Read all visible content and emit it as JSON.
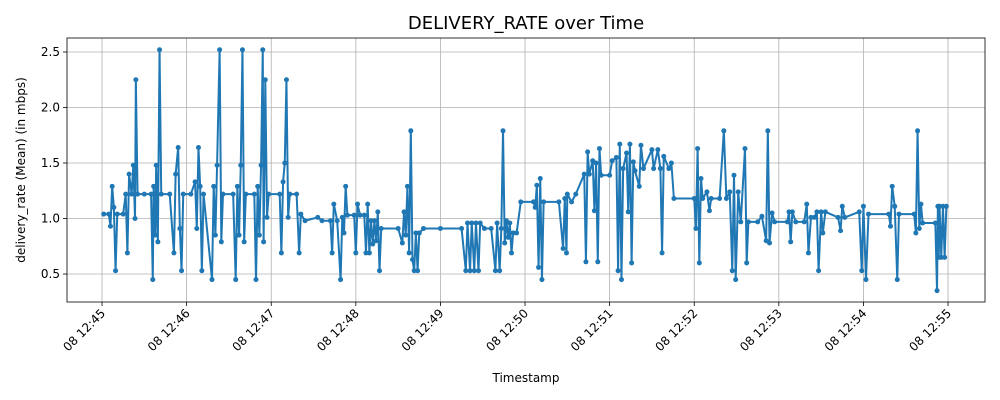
{
  "chart_data": {
    "type": "line",
    "title": "DELIVERY_RATE over Time",
    "x_label": "Timestamp",
    "y_label": "delivery_rate (Mean) (in mbps)",
    "color": "#1f77b4",
    "grid": true,
    "xlim": [
      44.586,
      55.437
    ],
    "ylim": [
      0.248,
      2.626
    ],
    "xticks": [
      {
        "value": 45,
        "label": "08 12:45"
      },
      {
        "value": 46,
        "label": "08 12:46"
      },
      {
        "value": 47,
        "label": "08 12:47"
      },
      {
        "value": 48,
        "label": "08 12:48"
      },
      {
        "value": 49,
        "label": "08 12:49"
      },
      {
        "value": 50,
        "label": "08 12:50"
      },
      {
        "value": 51,
        "label": "08 12:51"
      },
      {
        "value": 52,
        "label": "08 12:52"
      },
      {
        "value": 53,
        "label": "08 12:53"
      },
      {
        "value": 54,
        "label": "08 12:54"
      },
      {
        "value": 55,
        "label": "08 12:55"
      }
    ],
    "yticks": [
      0.5,
      {
        "value": 1,
        "label": "1.0"
      },
      1.5,
      {
        "value": 2,
        "label": "2.0"
      },
      2.5
    ],
    "x": [
      45.02,
      45.08,
      45.1,
      45.12,
      45.14,
      45.16,
      45.18,
      45.25,
      45.28,
      45.3,
      45.32,
      45.35,
      45.37,
      45.39,
      45.4,
      45.42,
      45.5,
      45.58,
      45.6,
      45.61,
      45.63,
      45.64,
      45.66,
      45.68,
      45.7,
      45.8,
      45.85,
      45.87,
      45.9,
      45.92,
      45.94,
      45.96,
      46.05,
      46.1,
      46.12,
      46.14,
      46.16,
      46.18,
      46.2,
      46.3,
      46.32,
      46.34,
      46.36,
      46.39,
      46.41,
      46.43,
      46.55,
      46.58,
      46.6,
      46.62,
      46.64,
      46.66,
      46.68,
      46.7,
      46.8,
      46.82,
      46.84,
      46.86,
      46.88,
      46.9,
      46.91,
      46.93,
      46.95,
      46.97,
      47.1,
      47.12,
      47.14,
      47.16,
      47.18,
      47.2,
      47.22,
      47.3,
      47.33,
      47.35,
      47.4,
      47.55,
      47.6,
      47.7,
      47.72,
      47.74,
      47.78,
      47.82,
      47.84,
      47.86,
      47.88,
      47.9,
      47.98,
      48.0,
      48.02,
      48.05,
      48.1,
      48.12,
      48.14,
      48.16,
      48.18,
      48.2,
      48.22,
      48.24,
      48.26,
      48.28,
      48.3,
      48.5,
      48.55,
      48.57,
      48.59,
      48.61,
      48.63,
      48.65,
      48.67,
      48.69,
      48.71,
      48.73,
      48.75,
      48.8,
      49.0,
      49.25,
      49.3,
      49.32,
      49.35,
      49.37,
      49.4,
      49.42,
      49.45,
      49.47,
      49.52,
      49.6,
      49.65,
      49.67,
      49.7,
      49.72,
      49.74,
      49.76,
      49.78,
      49.8,
      49.82,
      49.84,
      49.86,
      49.9,
      49.95,
      50.1,
      50.12,
      50.14,
      50.16,
      50.18,
      50.2,
      50.22,
      50.4,
      50.45,
      50.47,
      50.49,
      50.5,
      50.55,
      50.6,
      50.7,
      50.72,
      50.74,
      50.76,
      50.8,
      50.82,
      50.84,
      50.86,
      50.88,
      50.9,
      51.0,
      51.03,
      51.08,
      51.1,
      51.12,
      51.14,
      51.16,
      51.2,
      51.22,
      51.24,
      51.26,
      51.28,
      51.3,
      51.35,
      51.37,
      51.4,
      51.5,
      51.52,
      51.57,
      51.6,
      51.62,
      51.64,
      51.7,
      51.73,
      51.76,
      52.0,
      52.02,
      52.04,
      52.06,
      52.08,
      52.1,
      52.15,
      52.18,
      52.2,
      52.3,
      52.35,
      52.38,
      52.42,
      52.45,
      52.47,
      52.49,
      52.52,
      52.55,
      52.6,
      52.62,
      52.64,
      52.75,
      52.8,
      52.85,
      52.87,
      52.89,
      52.92,
      52.95,
      53.1,
      53.12,
      53.14,
      53.16,
      53.2,
      53.3,
      53.33,
      53.35,
      53.38,
      53.42,
      53.45,
      53.47,
      53.5,
      53.52,
      53.55,
      53.7,
      53.73,
      53.75,
      53.78,
      53.95,
      53.98,
      54.0,
      54.03,
      54.06,
      54.3,
      54.32,
      54.34,
      54.37,
      54.4,
      54.42,
      54.6,
      54.62,
      54.64,
      54.66,
      54.68,
      54.7,
      54.85,
      54.87,
      54.88,
      54.89,
      54.9,
      54.92,
      54.94,
      54.96,
      54.98
    ],
    "values": [
      1.04,
      1.04,
      0.93,
      1.29,
      1.1,
      0.53,
      1.04,
      1.04,
      1.22,
      0.69,
      1.4,
      1.22,
      1.48,
      1.0,
      2.25,
      1.22,
      1.22,
      1.22,
      0.45,
      1.29,
      0.85,
      1.48,
      0.79,
      2.52,
      1.22,
      1.22,
      0.69,
      1.4,
      1.64,
      0.91,
      0.53,
      1.22,
      1.22,
      1.33,
      0.91,
      1.64,
      1.29,
      0.53,
      1.22,
      0.45,
      1.29,
      0.85,
      1.48,
      2.52,
      0.79,
      1.22,
      1.22,
      0.45,
      1.29,
      0.85,
      1.48,
      2.52,
      0.79,
      1.22,
      1.22,
      0.45,
      1.29,
      0.85,
      1.48,
      2.52,
      0.79,
      2.25,
      1.01,
      1.22,
      1.22,
      0.69,
      1.33,
      1.5,
      2.25,
      1.01,
      1.22,
      1.22,
      0.69,
      1.04,
      0.98,
      1.01,
      0.98,
      0.98,
      0.69,
      1.13,
      0.98,
      0.45,
      1.01,
      0.87,
      1.29,
      1.03,
      1.03,
      0.69,
      1.13,
      1.03,
      1.03,
      0.69,
      1.13,
      0.69,
      0.98,
      0.77,
      0.98,
      0.8,
      1.06,
      0.53,
      0.91,
      0.91,
      0.78,
      1.06,
      0.85,
      1.29,
      0.69,
      1.79,
      0.63,
      0.53,
      0.87,
      0.53,
      0.87,
      0.91,
      0.91,
      0.91,
      0.53,
      0.96,
      0.53,
      0.96,
      0.53,
      0.96,
      0.53,
      0.96,
      0.91,
      0.91,
      0.53,
      0.96,
      0.53,
      0.91,
      1.79,
      0.78,
      0.98,
      0.83,
      0.96,
      0.69,
      0.87,
      0.87,
      1.15,
      1.15,
      1.1,
      1.3,
      0.56,
      1.36,
      0.45,
      1.15,
      1.15,
      0.73,
      1.18,
      0.69,
      1.22,
      1.15,
      1.22,
      1.4,
      0.61,
      1.6,
      1.4,
      1.52,
      1.07,
      1.5,
      0.61,
      1.63,
      1.39,
      1.39,
      1.52,
      1.55,
      0.53,
      1.67,
      0.45,
      1.45,
      1.59,
      1.06,
      1.67,
      0.6,
      1.51,
      1.43,
      1.29,
      1.66,
      1.45,
      1.62,
      1.45,
      1.62,
      1.45,
      0.69,
      1.56,
      1.45,
      1.5,
      1.18,
      1.18,
      0.91,
      1.63,
      0.6,
      1.36,
      1.18,
      1.24,
      1.07,
      1.18,
      1.18,
      1.79,
      1.18,
      1.24,
      0.53,
      1.39,
      0.45,
      1.24,
      0.97,
      1.63,
      0.6,
      0.97,
      0.97,
      1.02,
      0.8,
      1.79,
      0.78,
      1.05,
      0.97,
      0.97,
      1.06,
      0.79,
      1.06,
      0.97,
      0.97,
      1.13,
      0.69,
      1.01,
      1.01,
      1.06,
      0.53,
      1.06,
      0.87,
      1.06,
      1.01,
      0.89,
      1.11,
      1.01,
      1.06,
      0.53,
      1.11,
      0.45,
      1.04,
      1.04,
      0.93,
      1.29,
      1.11,
      0.45,
      1.04,
      1.04,
      0.87,
      1.79,
      0.91,
      1.13,
      0.96,
      0.96,
      0.35,
      1.11,
      0.65,
      1.11,
      0.65,
      1.11,
      0.65,
      1.11
    ]
  }
}
